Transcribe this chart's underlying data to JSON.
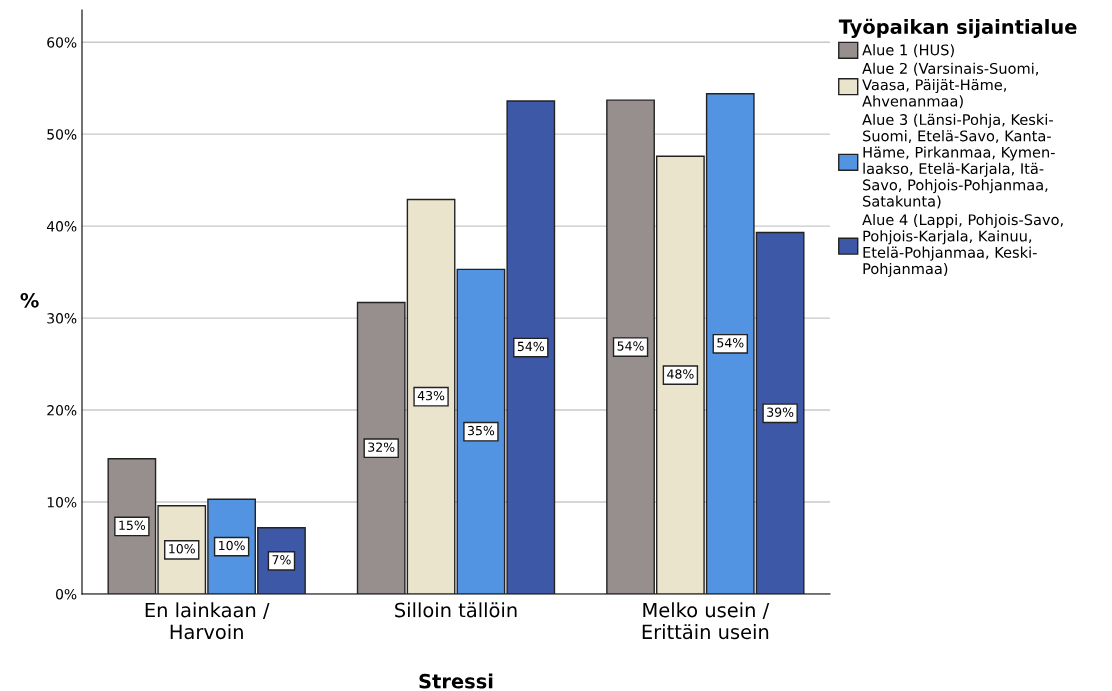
{
  "chart_data": {
    "type": "bar",
    "xlabel": "Stressi",
    "ylabel": "%",
    "legend_title": "Työpaikan sijaintialue",
    "categories": [
      "En lainkaan /\nHarvoin",
      "Silloin tällöin",
      "Melko usein /\nErittäin usein"
    ],
    "series": [
      {
        "name": "Alue 1 (HUS)",
        "color": "#968f8d",
        "values": [
          14.7,
          31.7,
          53.7
        ],
        "value_labels": [
          "15%",
          "32%",
          "54%"
        ]
      },
      {
        "name": "Alue 2 (Varsinais-Suomi,\nVaasa, Päijät-Häme,\nAhvenanmaa)",
        "color": "#ebe4cd",
        "values": [
          9.6,
          42.9,
          47.6
        ],
        "value_labels": [
          "10%",
          "43%",
          "48%"
        ]
      },
      {
        "name": "Alue 3 (Länsi-Pohja, Keski-\nSuomi, Etelä-Savo, Kanta-\nHäme, Pirkanmaa, Kymen-\nlaakso, Etelä-Karjala, Itä-\nSavo, Pohjois-Pohjanmaa,\nSatakunta)",
        "color": "#5294e2",
        "values": [
          10.3,
          35.3,
          54.4
        ],
        "value_labels": [
          "10%",
          "35%",
          "54%"
        ]
      },
      {
        "name": "Alue 4 (Lappi, Pohjois-Savo,\nPohjois-Karjala, Kainuu,\nEtelä-Pohjanmaa, Keski-\nPohjanmaa)",
        "color": "#3d58a7",
        "values": [
          7.2,
          53.6,
          39.3
        ],
        "value_labels": [
          "7%",
          "54%",
          "39%"
        ]
      }
    ],
    "ylim": [
      0,
      63.5
    ],
    "yticks": [
      {
        "value": 0,
        "label": "0%"
      },
      {
        "value": 10,
        "label": "10%"
      },
      {
        "value": 20,
        "label": "20%"
      },
      {
        "value": 30,
        "label": "30%"
      },
      {
        "value": 40,
        "label": "40%"
      },
      {
        "value": 50,
        "label": "50%"
      },
      {
        "value": 60,
        "label": "60%"
      }
    ],
    "grid": "y",
    "legend": "top right"
  }
}
